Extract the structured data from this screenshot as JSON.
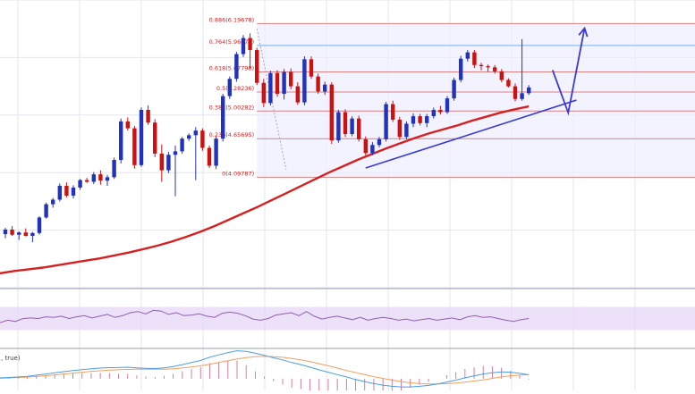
{
  "chart_data": [
    {
      "panel": "price",
      "type": "candlestick",
      "colors": {
        "bull": "#2233bb",
        "bear": "#cc1111",
        "moving_average": "#d62020",
        "trendline": "#3a3ad0",
        "arrow": "#3a3ad0",
        "grid": "#e3e6ee",
        "fib_band": "#eeeeff",
        "fib_line": "#d98080",
        "fib_line_0764": "#7ab0ee",
        "fib_label": "#cc2222"
      },
      "candles": [
        {
          "o": 18.6,
          "h": 20.8,
          "l": 17.2,
          "c": 20.2
        },
        {
          "o": 20.2,
          "h": 21.4,
          "l": 18.0,
          "c": 18.4
        },
        {
          "o": 18.4,
          "h": 19.6,
          "l": 16.6,
          "c": 19.2
        },
        {
          "o": 19.2,
          "h": 20.6,
          "l": 17.8,
          "c": 18.0
        },
        {
          "o": 18.0,
          "h": 19.4,
          "l": 15.8,
          "c": 19.0
        },
        {
          "o": 19.0,
          "h": 24.8,
          "l": 18.4,
          "c": 24.4
        },
        {
          "o": 24.4,
          "h": 29.6,
          "l": 24.0,
          "c": 29.0
        },
        {
          "o": 29.0,
          "h": 31.2,
          "l": 27.8,
          "c": 30.6
        },
        {
          "o": 30.6,
          "h": 36.2,
          "l": 30.0,
          "c": 35.4
        },
        {
          "o": 35.4,
          "h": 36.6,
          "l": 31.4,
          "c": 32.0
        },
        {
          "o": 32.0,
          "h": 35.6,
          "l": 31.0,
          "c": 34.8
        },
        {
          "o": 34.8,
          "h": 37.8,
          "l": 34.0,
          "c": 37.4
        },
        {
          "o": 37.4,
          "h": 38.2,
          "l": 36.4,
          "c": 36.8
        },
        {
          "o": 36.8,
          "h": 40.2,
          "l": 36.0,
          "c": 39.4
        },
        {
          "o": 39.4,
          "h": 40.8,
          "l": 35.8,
          "c": 37.2
        },
        {
          "o": 37.2,
          "h": 39.2,
          "l": 35.4,
          "c": 38.4
        },
        {
          "o": 38.4,
          "h": 45.2,
          "l": 37.8,
          "c": 44.4
        },
        {
          "o": 44.4,
          "h": 58.8,
          "l": 43.2,
          "c": 57.8
        },
        {
          "o": 57.8,
          "h": 59.2,
          "l": 54.6,
          "c": 55.4
        },
        {
          "o": 55.4,
          "h": 56.2,
          "l": 41.4,
          "c": 42.6
        },
        {
          "o": 42.6,
          "h": 62.6,
          "l": 42.0,
          "c": 61.8
        },
        {
          "o": 61.8,
          "h": 63.4,
          "l": 56.6,
          "c": 57.4
        },
        {
          "o": 57.4,
          "h": 58.6,
          "l": 45.4,
          "c": 46.6
        },
        {
          "o": 46.6,
          "h": 49.8,
          "l": 36.8,
          "c": 40.8
        },
        {
          "o": 40.8,
          "h": 47.2,
          "l": 39.8,
          "c": 46.2
        },
        {
          "o": 46.2,
          "h": 49.4,
          "l": 31.8,
          "c": 47.4
        },
        {
          "o": 47.4,
          "h": 52.4,
          "l": 46.6,
          "c": 51.8
        },
        {
          "o": 51.8,
          "h": 53.6,
          "l": 51.0,
          "c": 53.0
        },
        {
          "o": 53.0,
          "h": 55.8,
          "l": 37.4,
          "c": 54.6
        },
        {
          "o": 54.6,
          "h": 55.4,
          "l": 47.6,
          "c": 48.6
        },
        {
          "o": 48.6,
          "h": 49.4,
          "l": 41.6,
          "c": 42.4
        },
        {
          "o": 42.4,
          "h": 52.6,
          "l": 41.2,
          "c": 51.8
        },
        {
          "o": 51.8,
          "h": 67.4,
          "l": 50.8,
          "c": 66.6
        },
        {
          "o": 66.6,
          "h": 73.4,
          "l": 65.6,
          "c": 72.6
        },
        {
          "o": 72.6,
          "h": 82.0,
          "l": 71.6,
          "c": 81.2
        },
        {
          "o": 81.2,
          "h": 87.8,
          "l": 80.2,
          "c": 86.8
        },
        {
          "o": 86.8,
          "h": 88.4,
          "l": 76.4,
          "c": 82.6
        },
        {
          "o": 82.6,
          "h": 83.4,
          "l": 70.4,
          "c": 71.2
        },
        {
          "o": 71.2,
          "h": 72.6,
          "l": 62.8,
          "c": 64.2
        },
        {
          "o": 64.2,
          "h": 75.4,
          "l": 63.4,
          "c": 74.6
        },
        {
          "o": 74.6,
          "h": 75.6,
          "l": 66.4,
          "c": 67.4
        },
        {
          "o": 67.4,
          "h": 76.0,
          "l": 65.4,
          "c": 75.0
        },
        {
          "o": 75.0,
          "h": 76.2,
          "l": 69.0,
          "c": 70.0
        },
        {
          "o": 70.0,
          "h": 71.4,
          "l": 63.6,
          "c": 64.4
        },
        {
          "o": 64.4,
          "h": 80.4,
          "l": 63.4,
          "c": 79.4
        },
        {
          "o": 79.4,
          "h": 80.4,
          "l": 72.6,
          "c": 73.4
        },
        {
          "o": 73.4,
          "h": 74.4,
          "l": 67.4,
          "c": 68.2
        },
        {
          "o": 68.2,
          "h": 71.6,
          "l": 67.0,
          "c": 70.6
        },
        {
          "o": 70.6,
          "h": 71.4,
          "l": 50.0,
          "c": 51.2
        },
        {
          "o": 51.2,
          "h": 61.8,
          "l": 50.4,
          "c": 61.0
        },
        {
          "o": 61.0,
          "h": 62.0,
          "l": 52.4,
          "c": 53.4
        },
        {
          "o": 53.4,
          "h": 59.6,
          "l": 52.6,
          "c": 58.8
        },
        {
          "o": 58.8,
          "h": 59.8,
          "l": 50.8,
          "c": 51.6
        },
        {
          "o": 51.6,
          "h": 52.6,
          "l": 46.0,
          "c": 46.8
        },
        {
          "o": 46.8,
          "h": 50.6,
          "l": 46.0,
          "c": 49.6
        },
        {
          "o": 49.6,
          "h": 52.4,
          "l": 48.8,
          "c": 51.6
        },
        {
          "o": 51.6,
          "h": 64.6,
          "l": 50.8,
          "c": 63.8
        },
        {
          "o": 63.8,
          "h": 65.0,
          "l": 57.6,
          "c": 58.4
        },
        {
          "o": 58.4,
          "h": 59.4,
          "l": 51.4,
          "c": 52.4
        },
        {
          "o": 52.4,
          "h": 57.8,
          "l": 51.6,
          "c": 57.0
        },
        {
          "o": 57.0,
          "h": 60.6,
          "l": 55.8,
          "c": 59.6
        },
        {
          "o": 59.6,
          "h": 60.4,
          "l": 56.4,
          "c": 57.2
        },
        {
          "o": 57.2,
          "h": 60.4,
          "l": 55.8,
          "c": 59.6
        },
        {
          "o": 59.6,
          "h": 62.6,
          "l": 58.8,
          "c": 61.8
        },
        {
          "o": 61.8,
          "h": 63.2,
          "l": 60.2,
          "c": 61.0
        },
        {
          "o": 61.0,
          "h": 66.6,
          "l": 60.4,
          "c": 65.8
        },
        {
          "o": 65.8,
          "h": 73.0,
          "l": 65.0,
          "c": 72.2
        },
        {
          "o": 72.2,
          "h": 80.6,
          "l": 71.4,
          "c": 79.6
        },
        {
          "o": 79.6,
          "h": 82.6,
          "l": 78.6,
          "c": 81.8
        },
        {
          "o": 81.8,
          "h": 82.6,
          "l": 76.4,
          "c": 77.4
        },
        {
          "o": 77.4,
          "h": 78.2,
          "l": 75.6,
          "c": 77.0
        },
        {
          "o": 77.0,
          "h": 77.6,
          "l": 75.0,
          "c": 76.6
        },
        {
          "o": 76.6,
          "h": 77.4,
          "l": 74.4,
          "c": 75.2
        },
        {
          "o": 75.2,
          "h": 76.0,
          "l": 71.4,
          "c": 72.2
        },
        {
          "o": 72.2,
          "h": 72.8,
          "l": 69.6,
          "c": 70.0
        },
        {
          "o": 70.0,
          "h": 71.0,
          "l": 64.8,
          "c": 65.6
        },
        {
          "o": 65.6,
          "h": 86.4,
          "l": 65.0,
          "c": 67.6
        },
        {
          "o": 67.6,
          "h": 70.4,
          "l": 67.0,
          "c": 69.6
        }
      ],
      "moving_average": [
        5,
        5.8,
        6.4,
        7.0,
        7.8,
        8.6,
        9.4,
        10.2,
        11.2,
        12.2,
        13.4,
        14.6,
        16.0,
        17.6,
        19.4,
        21.4,
        23.6,
        25.8,
        28.0,
        30.4,
        32.8,
        35.2,
        37.6,
        40.0,
        42.2,
        44.4,
        46.4,
        48.4,
        50.2,
        52.0,
        53.6,
        55.0,
        56.4,
        58.0,
        59.4,
        60.8,
        62.0,
        63.0
      ],
      "fibonacci": [
        {
          "label": "0.886(6.19678)",
          "value": 91.8
        },
        {
          "label": "0.764(5.96077)",
          "value": 84.2
        },
        {
          "label": "0.618(5.67798)",
          "value": 75.0
        },
        {
          "label": "0.5(5.28236)",
          "value": 68.0
        },
        {
          "label": "0.382(5.00282)",
          "value": 61.4
        },
        {
          "label": "0.236(4.65695)",
          "value": 51.8
        },
        {
          "label": "0(4.09787)",
          "value": 38.4
        }
      ],
      "trendline": {
        "from": [
          53,
          41.6
        ],
        "to": [
          84,
          65.2
        ]
      },
      "projection_arrow": {
        "points": [
          [
            80.5,
            75.6
          ],
          [
            82.8,
            60.8
          ],
          [
            85.2,
            90.2
          ]
        ]
      }
    },
    {
      "panel": "rsi",
      "type": "line",
      "colors": {
        "line": "#8e5fb2",
        "band": "#e6d7f5"
      },
      "values": [
        43,
        47,
        45,
        50,
        51,
        50,
        53,
        52,
        54,
        50,
        53,
        55,
        51,
        54,
        57,
        52,
        55,
        60,
        62,
        58,
        64,
        63,
        57,
        60,
        55,
        56,
        58,
        54,
        52,
        59,
        61,
        59,
        55,
        49,
        47,
        50,
        56,
        58,
        60,
        55,
        62,
        54,
        49,
        52,
        54,
        51,
        48,
        52,
        47,
        50,
        52,
        50,
        47,
        49,
        46,
        48,
        50,
        47,
        49,
        51,
        48,
        53,
        55,
        52,
        53,
        50,
        47,
        45,
        48,
        50
      ],
      "ylim": [
        0,
        100
      ],
      "band": [
        30,
        70
      ]
    },
    {
      "panel": "macd",
      "type": "line",
      "label": ", true)",
      "colors": {
        "macd": "#4a9fe0",
        "signal": "#f0a060",
        "histogram": "#d07090"
      },
      "macd": [
        0.5,
        0.8,
        1.2,
        1.6,
        2.4,
        3.1,
        4.0,
        4.8,
        5.6,
        6.2,
        6.8,
        7.2,
        7.5,
        7.6,
        7.8,
        7.4,
        7.1,
        6.9,
        7.4,
        8.3,
        9.6,
        11.0,
        12.4,
        14.6,
        16.2,
        17.8,
        19.0,
        18.6,
        17.3,
        15.9,
        14.2,
        12.8,
        11.0,
        9.6,
        7.8,
        6.0,
        4.4,
        2.8,
        1.2,
        -0.6,
        -2.0,
        -3.4,
        -4.4,
        -5.2,
        -5.6,
        -5.6,
        -5.2,
        -4.6,
        -3.6,
        -2.3,
        -1.0,
        0.6,
        1.9,
        3.2,
        4.0,
        4.6,
        4.4,
        3.6,
        2.6
      ],
      "signal": [
        0.3,
        0.5,
        0.8,
        1.1,
        1.5,
        2.0,
        2.6,
        3.2,
        3.8,
        4.4,
        5.0,
        5.4,
        5.8,
        6.1,
        6.3,
        6.4,
        6.4,
        6.4,
        6.5,
        6.8,
        7.3,
        8.0,
        8.8,
        9.8,
        11.0,
        12.2,
        13.4,
        14.4,
        15.0,
        15.2,
        15.0,
        14.6,
        13.8,
        12.8,
        11.6,
        10.2,
        8.8,
        7.2,
        5.6,
        4.2,
        2.8,
        1.4,
        0.2,
        -1.0,
        -2.0,
        -2.8,
        -3.3,
        -3.6,
        -3.6,
        -3.4,
        -3.0,
        -2.4,
        -1.6,
        -0.8,
        0.2,
        1.2,
        2.0,
        2.4,
        2.8
      ],
      "ylim": [
        -8,
        20
      ]
    }
  ]
}
